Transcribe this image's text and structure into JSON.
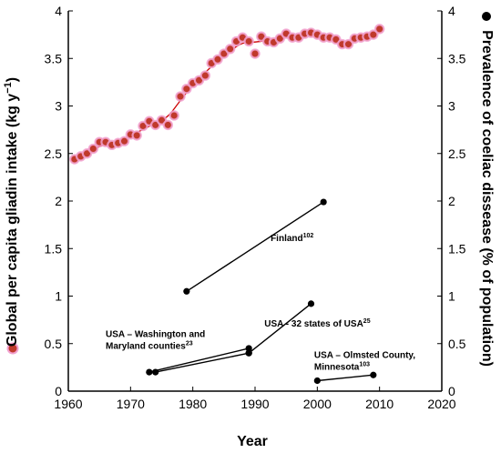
{
  "chart_data": {
    "type": "scatter",
    "xlabel": "Year",
    "ylabel_left_text": "Global per capita gliadin intake (kg y",
    "ylabel_left_sup": "−1",
    "ylabel_left_close": ")",
    "ylabel_right": "Prevalence of coeliac dissease (% of population)",
    "xlim": [
      1960,
      2020
    ],
    "ylim": [
      0,
      4
    ],
    "x_ticks": [
      "1960",
      "1970",
      "1980",
      "1990",
      "2000",
      "2010",
      "2020"
    ],
    "y_ticks": [
      "0",
      "0.5",
      "1",
      "1.5",
      "2",
      "2.5",
      "3",
      "3.5",
      "4"
    ],
    "colors": {
      "gliadin_fill": "#c0392b",
      "gliadin_highlight": "#f2a2d0",
      "gliadin_line": "#cc0000",
      "prevalence": "#000000",
      "axis": "#000000"
    },
    "gliadin_points": [
      {
        "x": 1961,
        "y": 2.44
      },
      {
        "x": 1962,
        "y": 2.47
      },
      {
        "x": 1963,
        "y": 2.5
      },
      {
        "x": 1964,
        "y": 2.55
      },
      {
        "x": 1965,
        "y": 2.62
      },
      {
        "x": 1966,
        "y": 2.62
      },
      {
        "x": 1967,
        "y": 2.59
      },
      {
        "x": 1968,
        "y": 2.61
      },
      {
        "x": 1969,
        "y": 2.63
      },
      {
        "x": 1970,
        "y": 2.7
      },
      {
        "x": 1971,
        "y": 2.69
      },
      {
        "x": 1972,
        "y": 2.79
      },
      {
        "x": 1973,
        "y": 2.84
      },
      {
        "x": 1974,
        "y": 2.8
      },
      {
        "x": 1975,
        "y": 2.85
      },
      {
        "x": 1976,
        "y": 2.8
      },
      {
        "x": 1977,
        "y": 2.9
      },
      {
        "x": 1978,
        "y": 3.1
      },
      {
        "x": 1979,
        "y": 3.18
      },
      {
        "x": 1980,
        "y": 3.24
      },
      {
        "x": 1981,
        "y": 3.27
      },
      {
        "x": 1982,
        "y": 3.32
      },
      {
        "x": 1983,
        "y": 3.45
      },
      {
        "x": 1984,
        "y": 3.49
      },
      {
        "x": 1985,
        "y": 3.55
      },
      {
        "x": 1986,
        "y": 3.6
      },
      {
        "x": 1987,
        "y": 3.68
      },
      {
        "x": 1988,
        "y": 3.72
      },
      {
        "x": 1989,
        "y": 3.68
      },
      {
        "x": 1990,
        "y": 3.55
      },
      {
        "x": 1991,
        "y": 3.73
      },
      {
        "x": 1992,
        "y": 3.68
      },
      {
        "x": 1993,
        "y": 3.67
      },
      {
        "x": 1994,
        "y": 3.71
      },
      {
        "x": 1995,
        "y": 3.76
      },
      {
        "x": 1996,
        "y": 3.72
      },
      {
        "x": 1997,
        "y": 3.72
      },
      {
        "x": 1998,
        "y": 3.76
      },
      {
        "x": 1999,
        "y": 3.77
      },
      {
        "x": 2000,
        "y": 3.75
      },
      {
        "x": 2001,
        "y": 3.72
      },
      {
        "x": 2002,
        "y": 3.72
      },
      {
        "x": 2003,
        "y": 3.7
      },
      {
        "x": 2004,
        "y": 3.65
      },
      {
        "x": 2005,
        "y": 3.65
      },
      {
        "x": 2006,
        "y": 3.71
      },
      {
        "x": 2007,
        "y": 3.72
      },
      {
        "x": 2008,
        "y": 3.73
      },
      {
        "x": 2009,
        "y": 3.75
      },
      {
        "x": 2010,
        "y": 3.81
      }
    ],
    "gliadin_trend": [
      [
        1961,
        2.45
      ],
      [
        1963,
        2.5
      ],
      [
        1965,
        2.58
      ],
      [
        1968,
        2.62
      ],
      [
        1971,
        2.72
      ],
      [
        1974,
        2.82
      ],
      [
        1976,
        2.88
      ],
      [
        1978,
        3.06
      ],
      [
        1980,
        3.22
      ],
      [
        1983,
        3.42
      ],
      [
        1986,
        3.58
      ],
      [
        1988,
        3.67
      ],
      [
        1990,
        3.67
      ],
      [
        1992,
        3.69
      ],
      [
        1995,
        3.73
      ],
      [
        1999,
        3.76
      ],
      [
        2002,
        3.72
      ],
      [
        2004,
        3.67
      ],
      [
        2006,
        3.69
      ],
      [
        2008,
        3.73
      ],
      [
        2010,
        3.79
      ]
    ],
    "prevalence_series": [
      {
        "points": [
          {
            "x": 1979,
            "y": 1.05
          },
          {
            "x": 2001,
            "y": 1.99
          }
        ]
      },
      {
        "points": [
          {
            "x": 1989,
            "y": 0.4
          },
          {
            "x": 1999,
            "y": 0.92
          }
        ]
      },
      {
        "points": [
          {
            "x": 1973,
            "y": 0.2
          },
          {
            "x": 1989,
            "y": 0.45
          }
        ]
      },
      {
        "points": [
          {
            "x": 1974,
            "y": 0.2
          },
          {
            "x": 1989,
            "y": 0.4
          }
        ]
      },
      {
        "points": [
          {
            "x": 2000,
            "y": 0.11
          },
          {
            "x": 2009,
            "y": 0.17
          }
        ]
      }
    ],
    "annotations": [
      {
        "id": "finland",
        "lines": [
          {
            "text": "Finland",
            "sup": "102"
          }
        ],
        "x": 1992.5,
        "y": 1.58
      },
      {
        "id": "usa-32",
        "lines": [
          {
            "text": "USA - 32 states of USA",
            "sup": "25"
          }
        ],
        "x": 1991.5,
        "y": 0.68
      },
      {
        "id": "usa-wm",
        "lines": [
          {
            "text": "USA – Washington and",
            "sup": ""
          },
          {
            "text": "Maryland counties",
            "sup": "23"
          }
        ],
        "x": 1966,
        "y": 0.57
      },
      {
        "id": "usa-olmsted",
        "lines": [
          {
            "text": "USA – Olmsted County,",
            "sup": ""
          },
          {
            "text": "Minnesota",
            "sup": "103"
          }
        ],
        "x": 1999.5,
        "y": 0.35
      }
    ]
  }
}
